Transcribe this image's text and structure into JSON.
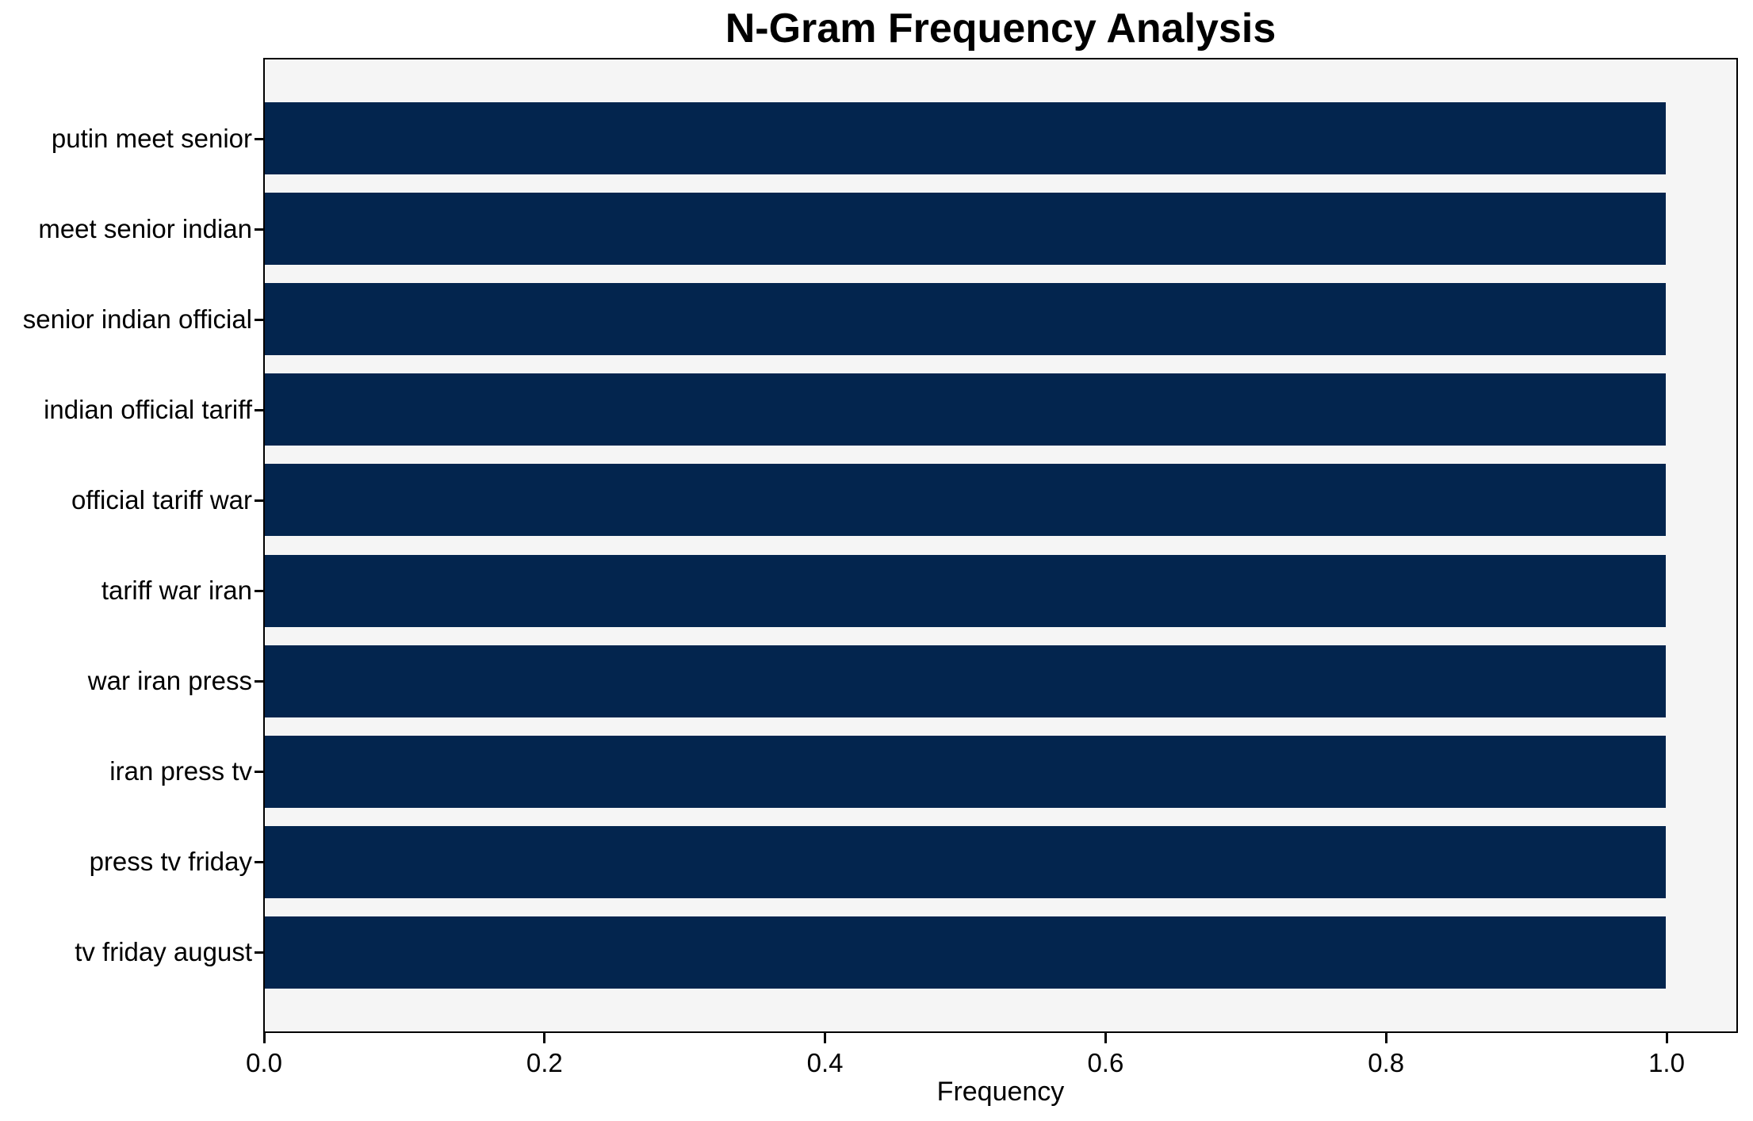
{
  "chart_data": {
    "type": "bar",
    "orientation": "horizontal",
    "title": "N-Gram Frequency Analysis",
    "xlabel": "Frequency",
    "ylabel": "",
    "categories": [
      "putin meet senior",
      "meet senior indian",
      "senior indian official",
      "indian official tariff",
      "official tariff war",
      "tariff war iran",
      "war iran press",
      "iran press tv",
      "press tv friday",
      "tv friday august"
    ],
    "values": [
      1.0,
      1.0,
      1.0,
      1.0,
      1.0,
      1.0,
      1.0,
      1.0,
      1.0,
      1.0
    ],
    "xlim": [
      0,
      1.05
    ],
    "xticks": [
      0.0,
      0.2,
      0.4,
      0.6,
      0.8,
      1.0
    ],
    "xtick_labels": [
      "0.0",
      "0.2",
      "0.4",
      "0.6",
      "0.8",
      "1.0"
    ],
    "grid": false,
    "legend": "none",
    "colors": {
      "bar": "#03254e",
      "plot_background": "#f5f5f5",
      "figure_background": "#ffffff",
      "spine": "#000000",
      "text": "#000000"
    }
  }
}
